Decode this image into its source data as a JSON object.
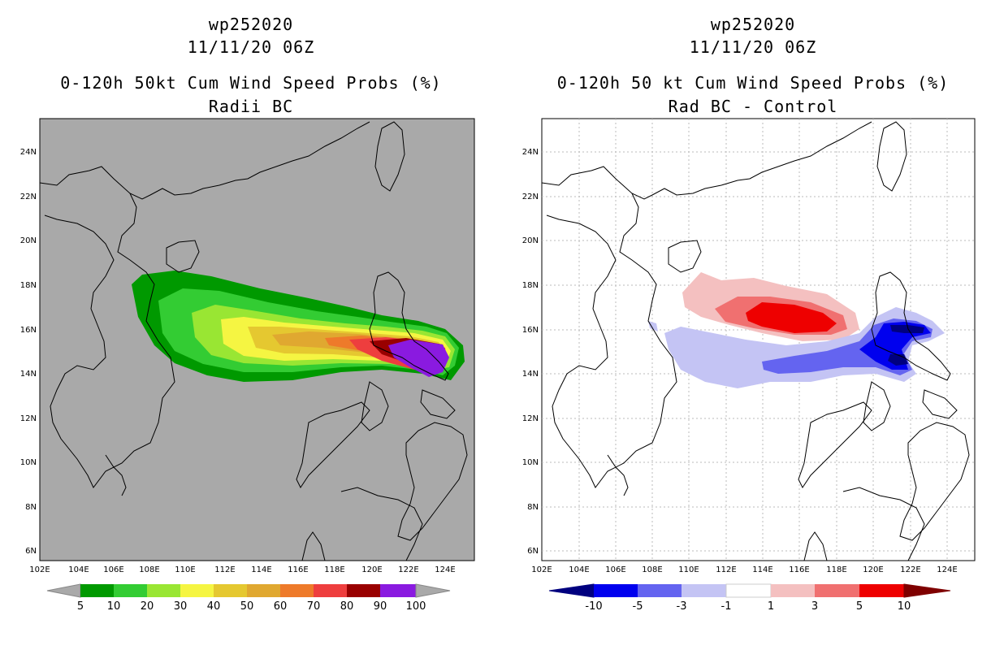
{
  "left": {
    "title1": "wp252020",
    "title2": "11/11/20 06Z",
    "title3": "0-120h 50kt Cum Wind Speed Probs (%)",
    "title4": "Radii BC",
    "lat_labels": [
      "24N",
      "22N",
      "20N",
      "18N",
      "16N",
      "14N",
      "12N",
      "10N",
      "8N",
      "6N"
    ],
    "lon_labels": [
      "102E",
      "104E",
      "106E",
      "108E",
      "110E",
      "112E",
      "114E",
      "116E",
      "118E",
      "120E",
      "122E",
      "124E"
    ],
    "colorbar_labels": [
      "5",
      "10",
      "20",
      "30",
      "40",
      "50",
      "60",
      "70",
      "80",
      "90",
      "100"
    ],
    "colors": {
      "background": "#a9a9a9",
      "c5_10": "#009900",
      "c10_20": "#33cc33",
      "c20_30": "#99e633",
      "c30_40": "#f5f542",
      "c40_50": "#e5c830",
      "c50_60": "#e0a830",
      "c60_70": "#ee7a2a",
      "c70_80": "#ee3e3e",
      "c80_90": "#990000",
      "c90_100": "#8a1ae0"
    }
  },
  "right": {
    "title1": "wp252020",
    "title2": "11/11/20 06Z",
    "title3": "0-120h 50 kt Cum Wind Speed Probs (%)",
    "title4": "Rad BC - Control",
    "lat_labels": [
      "24N",
      "22N",
      "20N",
      "18N",
      "16N",
      "14N",
      "12N",
      "10N",
      "8N",
      "6N"
    ],
    "lon_labels": [
      "102E",
      "104E",
      "106E",
      "108E",
      "110E",
      "112E",
      "114E",
      "116E",
      "118E",
      "120E",
      "122E",
      "124E"
    ],
    "colorbar_labels": [
      "-10",
      "-5",
      "-3",
      "-1",
      "1",
      "3",
      "5",
      "10"
    ],
    "colors": {
      "lt_neg10": "#00007f",
      "neg10_neg5": "#0000ee",
      "neg5_neg3": "#6464f0",
      "neg3_neg1": "#c4c4f4",
      "neg1_1": "#ffffff",
      "p1_3": "#f4c0c0",
      "p3_5": "#f07070",
      "p5_10": "#ee0000",
      "gt10": "#7f0000"
    }
  }
}
